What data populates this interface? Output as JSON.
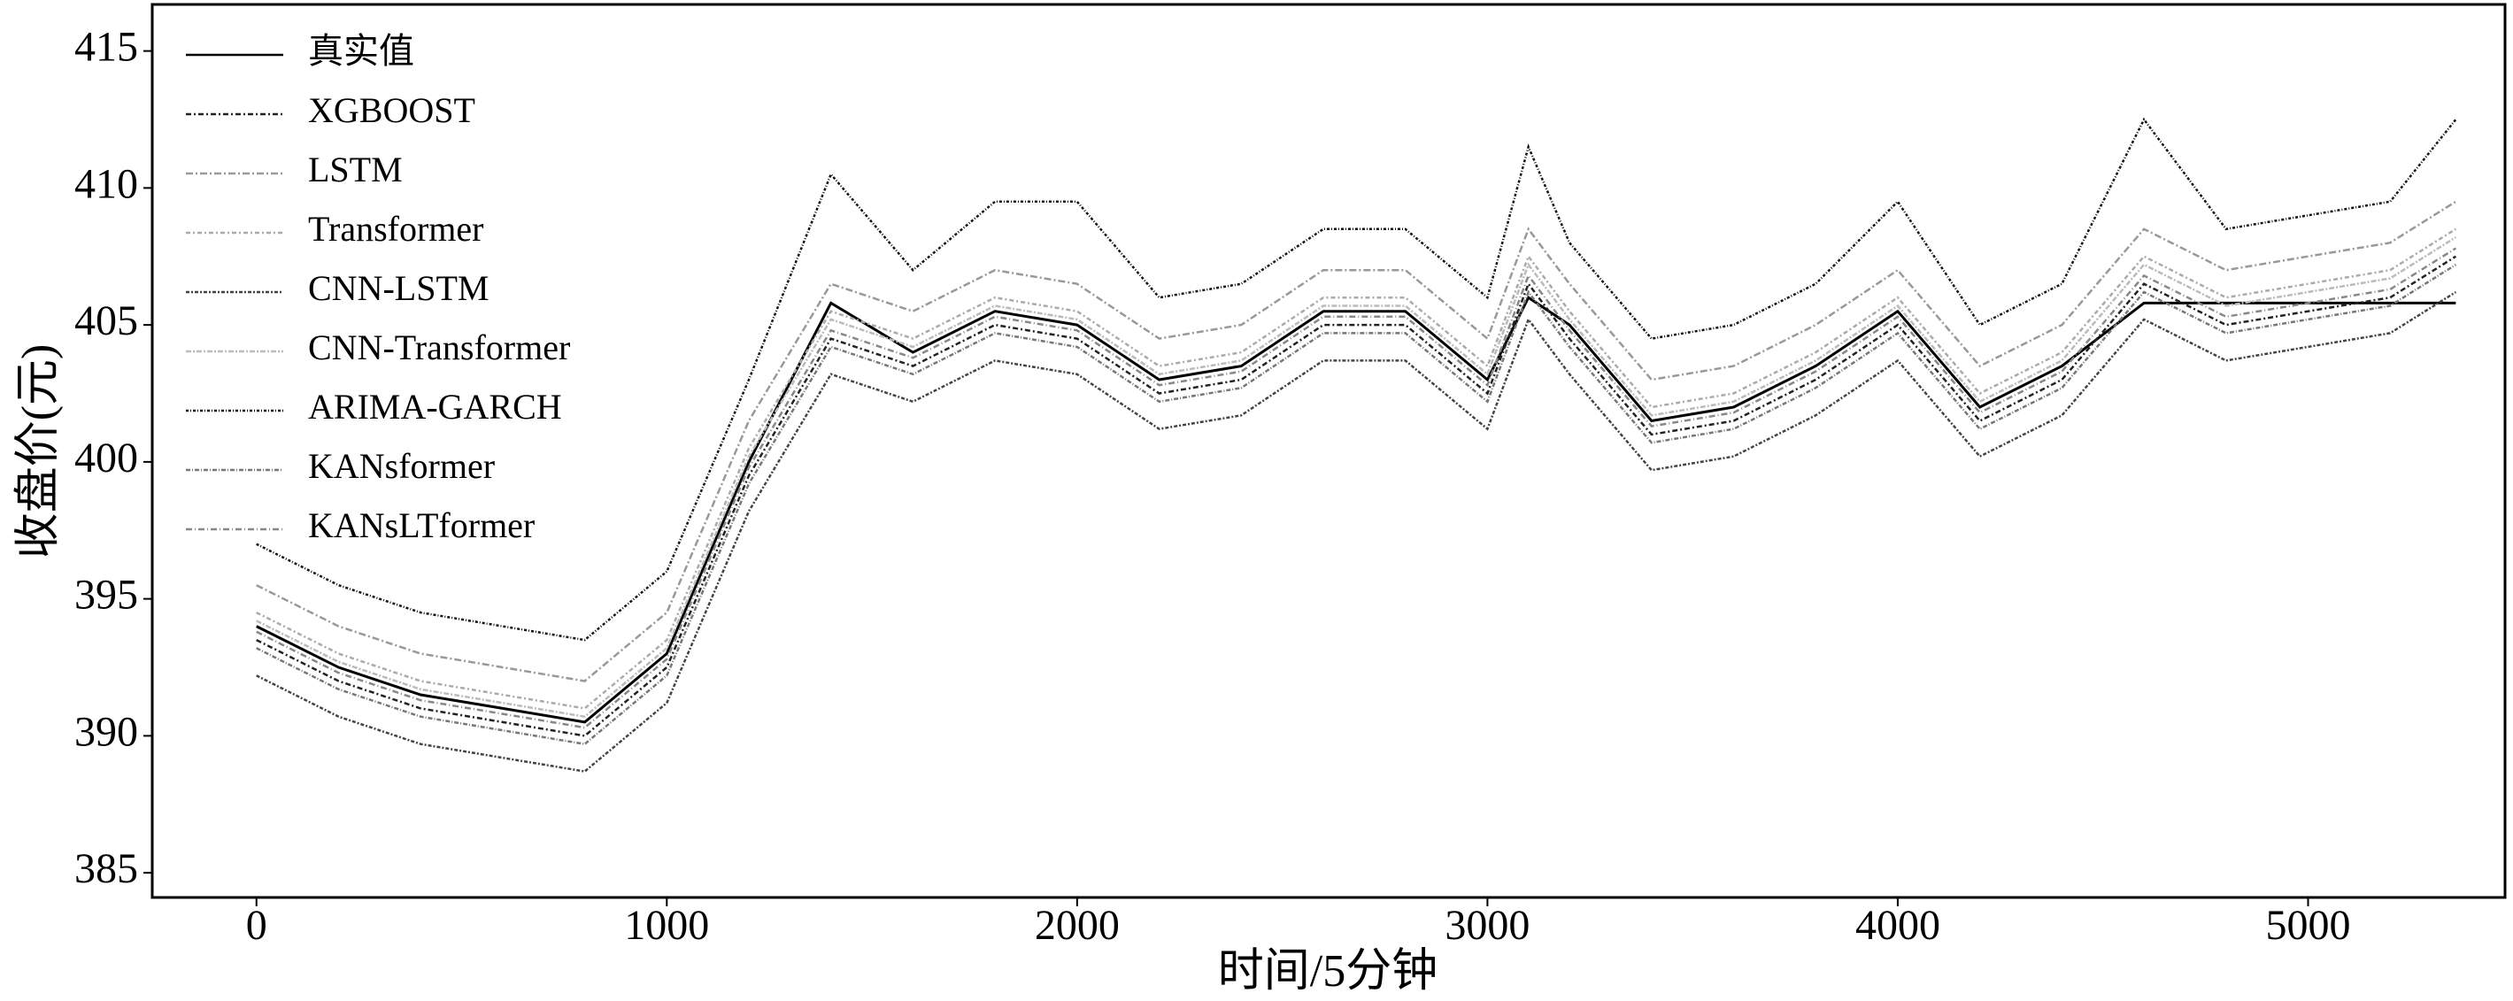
{
  "chart_data": {
    "type": "line",
    "x_label": "时间/5分钟",
    "y_label": "收盘价(元)",
    "x": [
      0,
      200,
      400,
      600,
      800,
      1000,
      1200,
      1400,
      1600,
      1800,
      2000,
      2200,
      2400,
      2600,
      2800,
      3000,
      3100,
      3200,
      3400,
      3600,
      3800,
      4000,
      4200,
      4400,
      4600,
      4800,
      5000,
      5200,
      5360
    ],
    "xlim": [
      -254,
      5480
    ],
    "xticks": [
      0,
      1000,
      2000,
      3000,
      4000,
      5000
    ],
    "ylim": [
      384.1,
      416.7
    ],
    "yticks": [
      385,
      390,
      395,
      400,
      405,
      410,
      415
    ],
    "legend": "upper left",
    "series": [
      {
        "name": "真实值",
        "color": "#000000",
        "dash": "none",
        "values": [
          394,
          392.5,
          391.5,
          391,
          390.5,
          393,
          400,
          405.8,
          404,
          405.5,
          405,
          403,
          403.5,
          405.5,
          405.5,
          403,
          406,
          405,
          401.5,
          402,
          403.5,
          405.5,
          402,
          403.5,
          405.8,
          405.8,
          405.8,
          405.8,
          405.8
        ]
      },
      {
        "name": "XGBOOST",
        "color": "#222222",
        "dash": "6 3 2 3",
        "values": [
          393.5,
          392,
          391,
          390.5,
          390,
          392.5,
          399.5,
          404.5,
          403.5,
          405,
          404.5,
          402.5,
          403,
          405,
          405,
          402.5,
          406.5,
          404.5,
          401,
          401.5,
          403,
          405,
          401.5,
          403,
          406.5,
          405,
          405.5,
          406,
          407.5
        ]
      },
      {
        "name": "LSTM",
        "color": "#999999",
        "dash": "8 3 2 3",
        "values": [
          395.5,
          394,
          393,
          392.5,
          392,
          394.5,
          401.5,
          406.5,
          405.5,
          407,
          406.5,
          404.5,
          405,
          407,
          407,
          404.5,
          408.5,
          406.5,
          403,
          403.5,
          405,
          407,
          403.5,
          405,
          408.5,
          407,
          407.5,
          408,
          409.5
        ]
      },
      {
        "name": "Transformer",
        "color": "#aaaaaa",
        "dash": "5 3 2 3",
        "values": [
          394.5,
          393,
          392,
          391.5,
          391,
          393.5,
          400.5,
          405.5,
          404.5,
          406,
          405.5,
          403.5,
          404,
          406,
          406,
          403.5,
          407.5,
          405.5,
          402,
          402.5,
          404,
          406,
          402.5,
          404,
          407.5,
          406,
          406.5,
          407,
          408.5
        ]
      },
      {
        "name": "CNN-LSTM",
        "color": "#444444",
        "dash": "4 2 2 2",
        "values": [
          392.2,
          390.7,
          389.7,
          389.2,
          388.7,
          391.2,
          398.2,
          403.2,
          402.2,
          403.7,
          403.2,
          401.2,
          401.7,
          403.7,
          403.7,
          401.2,
          405.2,
          403.2,
          399.7,
          400.2,
          401.7,
          403.7,
          400.2,
          401.7,
          405.2,
          403.7,
          404.2,
          404.7,
          406.2
        ]
      },
      {
        "name": "CNN-Transformer",
        "color": "#bbbbbb",
        "dash": "6 2 2 2",
        "values": [
          394.2,
          392.7,
          391.7,
          391.2,
          390.7,
          393.2,
          400.2,
          405.2,
          404.2,
          405.7,
          405.2,
          403.2,
          403.7,
          405.7,
          405.7,
          403.2,
          407.2,
          405.2,
          401.7,
          402.2,
          403.7,
          405.7,
          402.2,
          403.7,
          407.2,
          405.7,
          406.2,
          406.7,
          408.2
        ]
      },
      {
        "name": "ARIMA-GARCH",
        "color": "#111111",
        "dash": "3 2 1 2",
        "values": [
          397,
          395.5,
          394.5,
          394,
          393.5,
          396,
          403,
          410.5,
          407,
          409.5,
          409.5,
          406,
          406.5,
          408.5,
          408.5,
          406,
          411.5,
          408,
          404.5,
          405,
          406.5,
          409.5,
          405,
          406.5,
          412.5,
          408.5,
          409,
          409.5,
          412.5
        ]
      },
      {
        "name": "KANsformer",
        "color": "#777777",
        "dash": "5 2 1 2",
        "values": [
          393.2,
          391.7,
          390.7,
          390.2,
          389.7,
          392.2,
          399.2,
          404.2,
          403.2,
          404.7,
          404.2,
          402.2,
          402.7,
          404.7,
          404.7,
          402.2,
          406.2,
          404.2,
          400.7,
          401.2,
          402.7,
          404.7,
          401.2,
          402.7,
          406.2,
          404.7,
          405.2,
          405.7,
          407.2
        ]
      },
      {
        "name": "KANsLTformer",
        "color": "#888888",
        "dash": "7 3 1 3",
        "values": [
          393.8,
          392.3,
          391.3,
          390.8,
          390.3,
          392.8,
          399.8,
          404.8,
          403.8,
          405.3,
          404.8,
          402.8,
          403.3,
          405.3,
          405.3,
          402.8,
          406.8,
          404.8,
          401.3,
          401.8,
          403.3,
          405.3,
          401.8,
          403.3,
          406.8,
          405.3,
          405.8,
          406.3,
          407.8
        ]
      }
    ]
  }
}
